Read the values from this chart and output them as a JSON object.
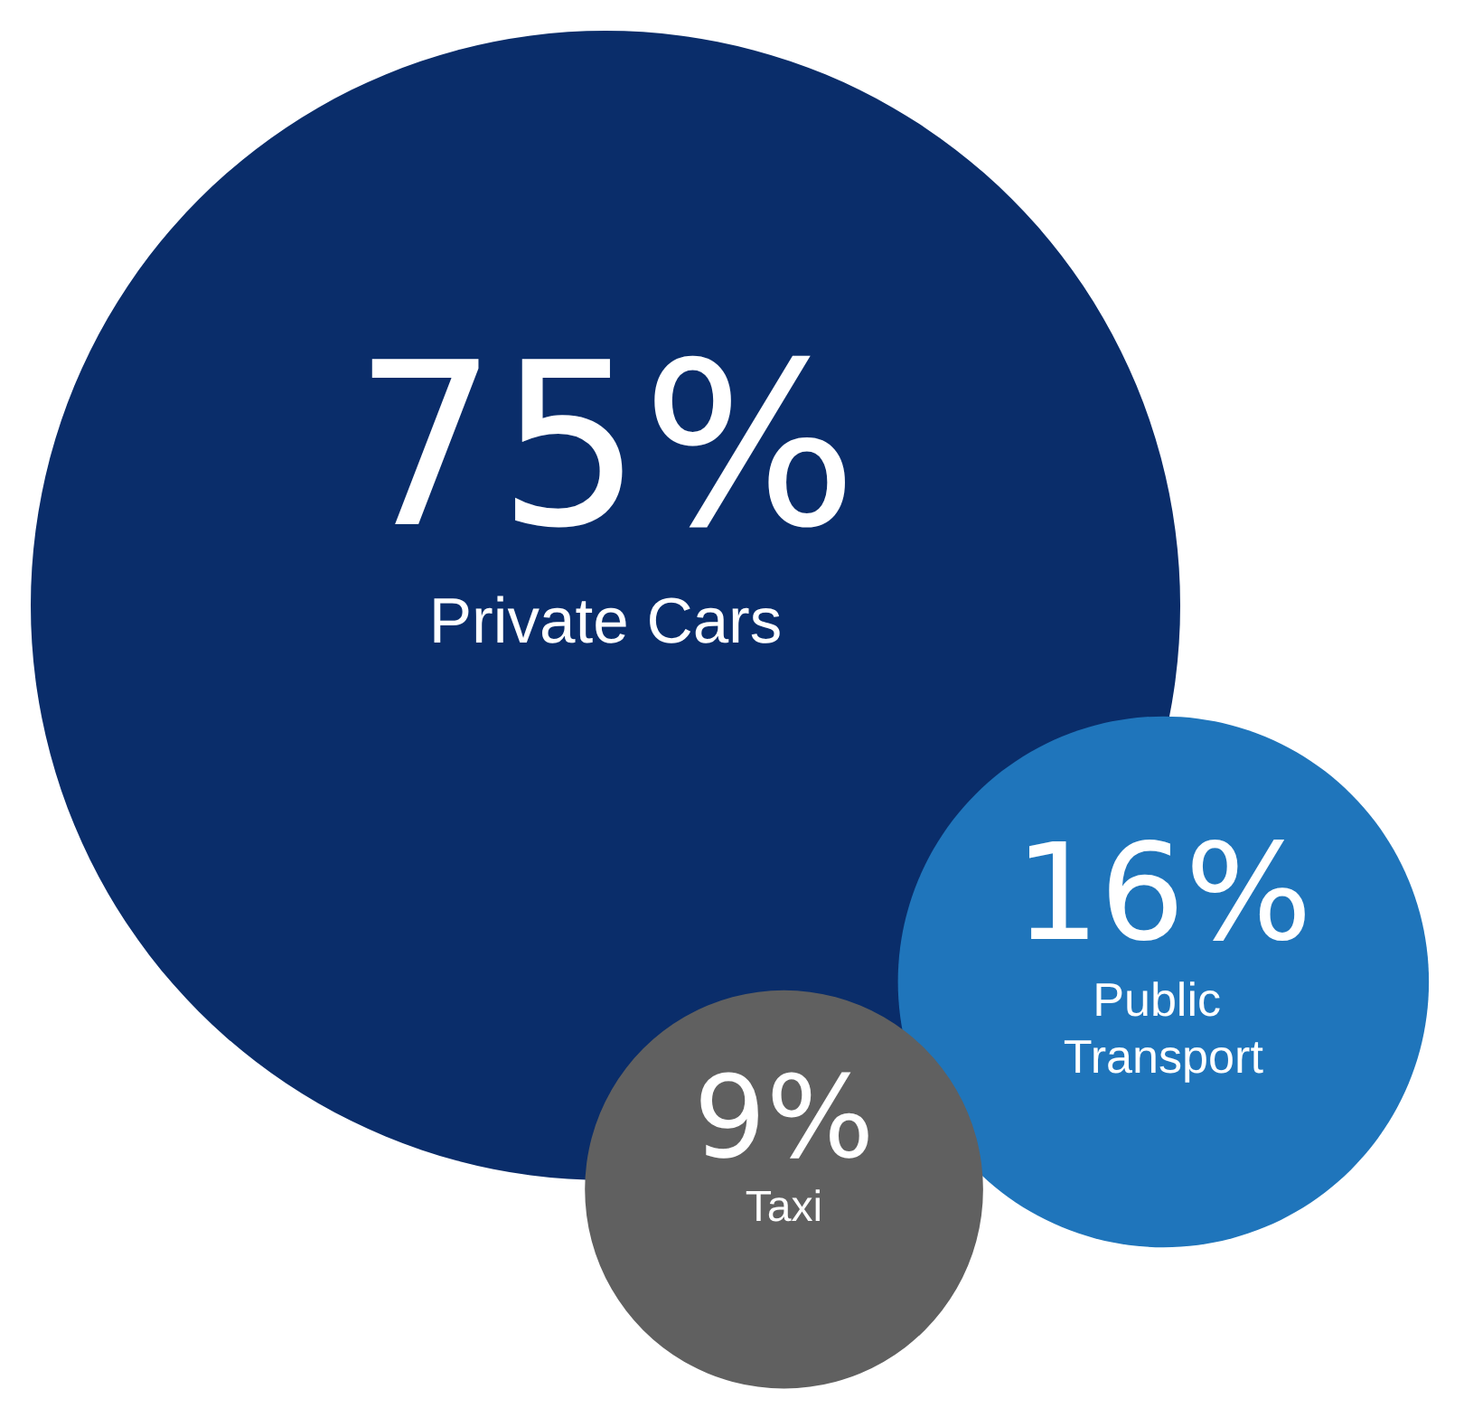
{
  "chart_data": {
    "type": "other",
    "categories": [
      "Private Cars",
      "Public Transport",
      "Taxi"
    ],
    "values": [
      75,
      16,
      9
    ],
    "value_labels": [
      "75%",
      "16%",
      "9%"
    ],
    "colors": [
      "#0a2d6a",
      "#1f75bb",
      "#606060"
    ]
  }
}
